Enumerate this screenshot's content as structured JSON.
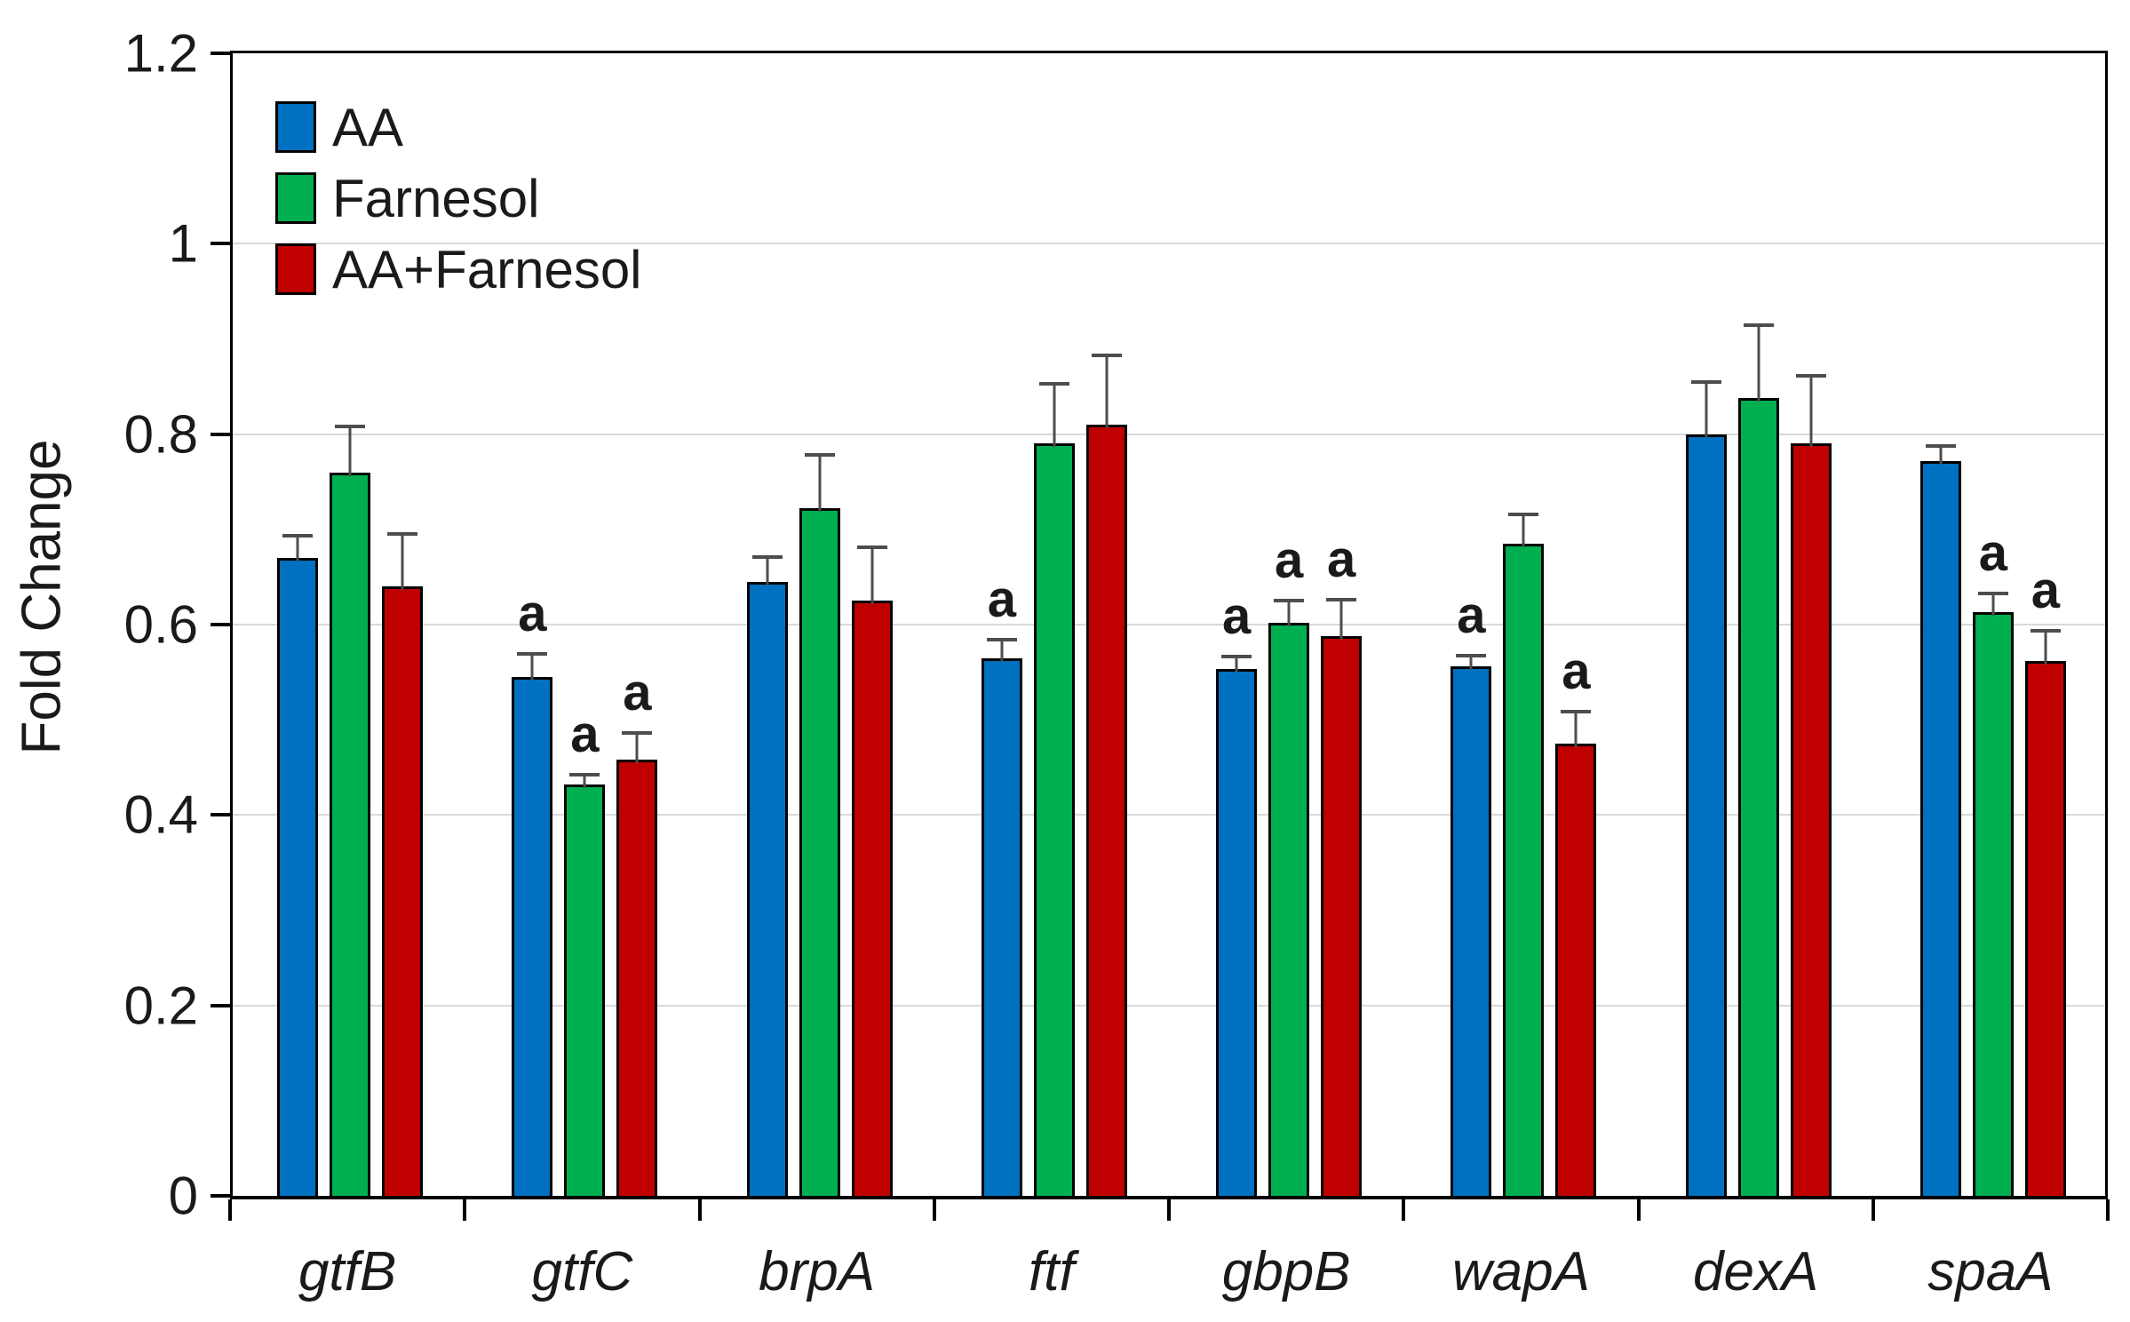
{
  "chart_data": {
    "type": "bar",
    "title": "",
    "xlabel": "",
    "ylabel": "Fold Change",
    "ylim": [
      0,
      1.2
    ],
    "yticks": [
      0,
      0.2,
      0.4,
      0.6,
      0.8,
      1,
      1.2
    ],
    "ytick_labels": [
      "0",
      "0.2",
      "0.4",
      "0.6",
      "0.8",
      "1",
      "1.2"
    ],
    "grid": "horizontal gridlines at each y tick",
    "legend_position": "top-left inside plot area",
    "annotation_glyph": "a",
    "categories": [
      "gtfB",
      "gtfC",
      "brpA",
      "ftf",
      "gbpB",
      "wapA",
      "dexA",
      "spaA"
    ],
    "series": [
      {
        "name": "AA",
        "color": "#0070C0",
        "values": [
          0.67,
          0.545,
          0.645,
          0.565,
          0.553,
          0.556,
          0.8,
          0.772
        ],
        "errors": [
          0.025,
          0.026,
          0.028,
          0.021,
          0.015,
          0.013,
          0.057,
          0.017
        ],
        "annotations": [
          "",
          "a",
          "",
          "a",
          "a",
          "a",
          "",
          ""
        ]
      },
      {
        "name": "Farnesol",
        "color": "#00B050",
        "values": [
          0.76,
          0.432,
          0.722,
          0.79,
          0.602,
          0.685,
          0.838,
          0.613
        ],
        "errors": [
          0.05,
          0.012,
          0.058,
          0.065,
          0.025,
          0.033,
          0.078,
          0.022
        ],
        "annotations": [
          "",
          "a",
          "",
          "",
          "a",
          "",
          "",
          "a"
        ]
      },
      {
        "name": "AA+Farnesol",
        "color": "#C00000",
        "values": [
          0.64,
          0.458,
          0.625,
          0.81,
          0.588,
          0.475,
          0.79,
          0.562
        ],
        "errors": [
          0.057,
          0.03,
          0.058,
          0.075,
          0.04,
          0.035,
          0.073,
          0.033
        ],
        "annotations": [
          "",
          "a",
          "",
          "",
          "a",
          "a",
          "",
          "a"
        ]
      }
    ]
  },
  "colors": {
    "gridline": "#D9D9D9",
    "axis": "#000000",
    "error_bar": "#4D4D4D",
    "text": "#1A1A1A",
    "background": "#FFFFFF"
  }
}
